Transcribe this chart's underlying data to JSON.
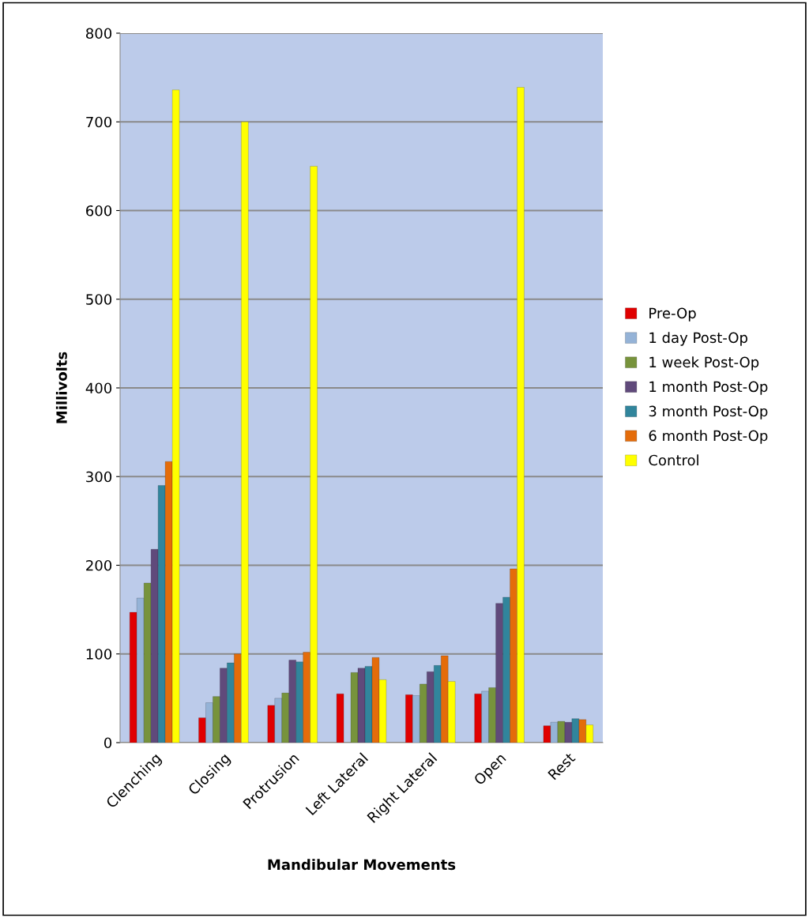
{
  "chart_data": {
    "type": "bar",
    "xlabel": "Mandibular Movements",
    "ylabel": "Millivolts",
    "categories": [
      "Clenching",
      "Closing",
      "Protrusion",
      "Left Lateral",
      "Right Lateral",
      "Open",
      "Rest"
    ],
    "series": [
      {
        "name": "Pre-Op",
        "color": "#e00000",
        "values": [
          147,
          28,
          42,
          55,
          54,
          55,
          19
        ]
      },
      {
        "name": "1 day Post-Op",
        "color": "#95b3d7",
        "values": [
          163,
          45,
          50,
          null,
          53,
          58,
          23
        ]
      },
      {
        "name": "1 week Post-Op",
        "color": "#77933c",
        "values": [
          180,
          52,
          56,
          79,
          66,
          62,
          24
        ]
      },
      {
        "name": "1 month Post-Op",
        "color": "#604a7b",
        "values": [
          218,
          84,
          93,
          84,
          80,
          157,
          23
        ]
      },
      {
        "name": "3 month Post-Op",
        "color": "#31859c",
        "values": [
          290,
          90,
          91,
          86,
          87,
          164,
          27
        ]
      },
      {
        "name": "6 month Post-Op",
        "color": "#e46c0a",
        "values": [
          317,
          100,
          102,
          96,
          98,
          196,
          26
        ]
      },
      {
        "name": "Control",
        "color": "#ffff00",
        "values": [
          736,
          700,
          650,
          71,
          69,
          739,
          20
        ]
      }
    ],
    "ylim": [
      0,
      800
    ],
    "yticks": [
      0,
      100,
      200,
      300,
      400,
      500,
      600,
      700,
      800
    ],
    "grid": "y",
    "legend": "right"
  }
}
